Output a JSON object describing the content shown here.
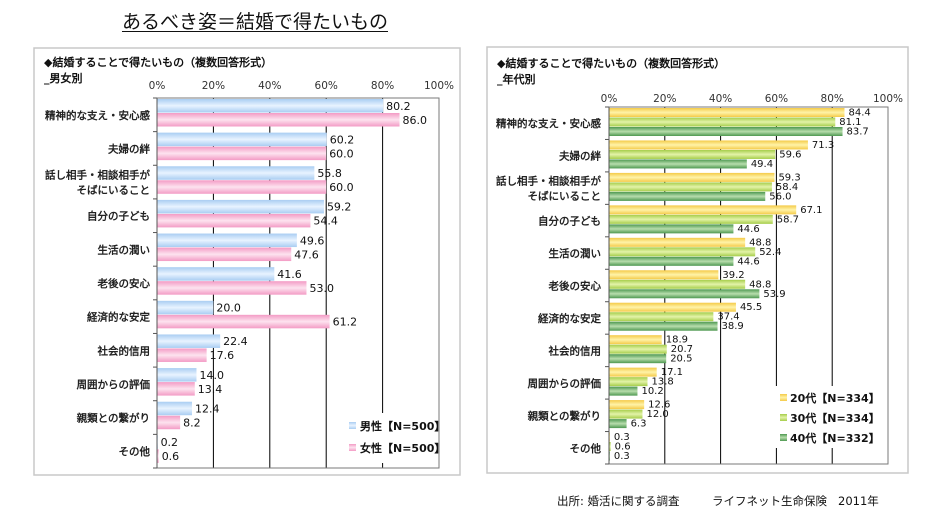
{
  "page_title": "あるべき姿＝結婚で得たいもの",
  "source": {
    "label": "出所: 婚活に関する調査",
    "org": "ライフネット生命保険",
    "year": "2011年"
  },
  "chart_data": [
    {
      "type": "bar",
      "orientation": "horizontal",
      "title": "◆結婚することで得たいもの（複数回答形式）",
      "subtitle": "_男女別",
      "xlim": [
        0,
        100
      ],
      "xticks": [
        "0%",
        "20%",
        "40%",
        "60%",
        "80%",
        "100%"
      ],
      "grid": true,
      "legend": "bottom-right",
      "categories": [
        "精神的な支え・安心感",
        "夫婦の絆",
        "話し相手・相談相手が\nそばにいること",
        "自分の子ども",
        "生活の潤い",
        "老後の安心",
        "経済的な安定",
        "社会的信用",
        "周囲からの評価",
        "親類との繋がり",
        "その他"
      ],
      "series": [
        {
          "name": "男性【N=500】",
          "color": "#a9cdf2",
          "highlight": "#e8f3ff",
          "values": [
            80.2,
            60.2,
            55.8,
            59.2,
            49.6,
            41.6,
            20.0,
            22.4,
            14.0,
            12.4,
            0.2
          ]
        },
        {
          "name": "女性【N=500】",
          "color": "#f39bc5",
          "highlight": "#fde3ef",
          "values": [
            86.0,
            60.0,
            60.0,
            54.4,
            47.6,
            53.0,
            61.2,
            17.6,
            13.4,
            8.2,
            0.6
          ]
        }
      ]
    },
    {
      "type": "bar",
      "orientation": "horizontal",
      "title": "◆結婚することで得たいもの（複数回答形式）",
      "subtitle": "_年代別",
      "xlim": [
        0,
        100
      ],
      "xticks": [
        "0%",
        "20%",
        "40%",
        "60%",
        "80%",
        "100%"
      ],
      "grid": true,
      "legend": "bottom-right",
      "categories": [
        "精神的な支え・安心感",
        "夫婦の絆",
        "話し相手・相談相手が\nそばにいること",
        "自分の子ども",
        "生活の潤い",
        "老後の安心",
        "経済的な安定",
        "社会的信用",
        "周囲からの評価",
        "親類との繋がり",
        "その他"
      ],
      "series": [
        {
          "name": "20代【N=334】",
          "color": "#f4ca48",
          "highlight": "#fff3a8",
          "values": [
            84.4,
            71.3,
            59.3,
            67.1,
            48.8,
            39.2,
            45.5,
            18.9,
            17.1,
            12.6,
            0.3
          ]
        },
        {
          "name": "30代【N=334】",
          "color": "#a5cd4a",
          "highlight": "#e3f3a8",
          "values": [
            81.1,
            59.6,
            58.4,
            58.7,
            52.4,
            48.8,
            37.4,
            20.7,
            13.8,
            12.0,
            0.6
          ]
        },
        {
          "name": "40代【N=332】",
          "color": "#4e9851",
          "highlight": "#b7ddac",
          "values": [
            83.7,
            49.4,
            56.0,
            44.6,
            44.6,
            53.9,
            38.9,
            20.5,
            10.2,
            6.3,
            0.3
          ]
        }
      ]
    }
  ]
}
